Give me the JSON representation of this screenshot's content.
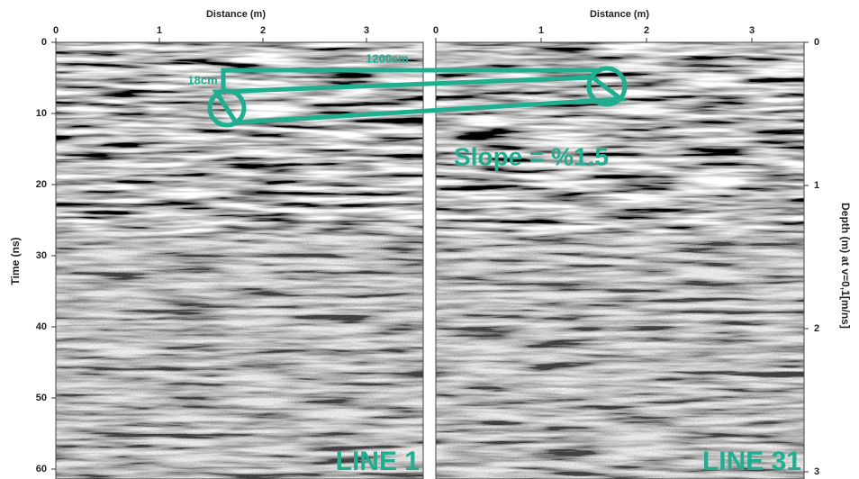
{
  "left_panel": {
    "x_axis_title": "Distance (m)",
    "x_ticks": [
      "0",
      "1",
      "2",
      "3"
    ],
    "y_axis_title": "Time (ns)",
    "y_ticks": [
      "0",
      "10",
      "20",
      "30",
      "40",
      "50",
      "60"
    ],
    "label": "LINE 1"
  },
  "right_panel": {
    "x_axis_title": "Distance (m)",
    "x_ticks": [
      "0",
      "1",
      "2",
      "3"
    ],
    "y_axis_title": "Depth (m) at v=0,1[m/ns]",
    "y_ticks": [
      "0",
      "1",
      "2",
      "3"
    ],
    "label": "LINE 31"
  },
  "annotations": {
    "length": "1200cm",
    "height": "18cm",
    "slope": "Slope = %1.5"
  }
}
